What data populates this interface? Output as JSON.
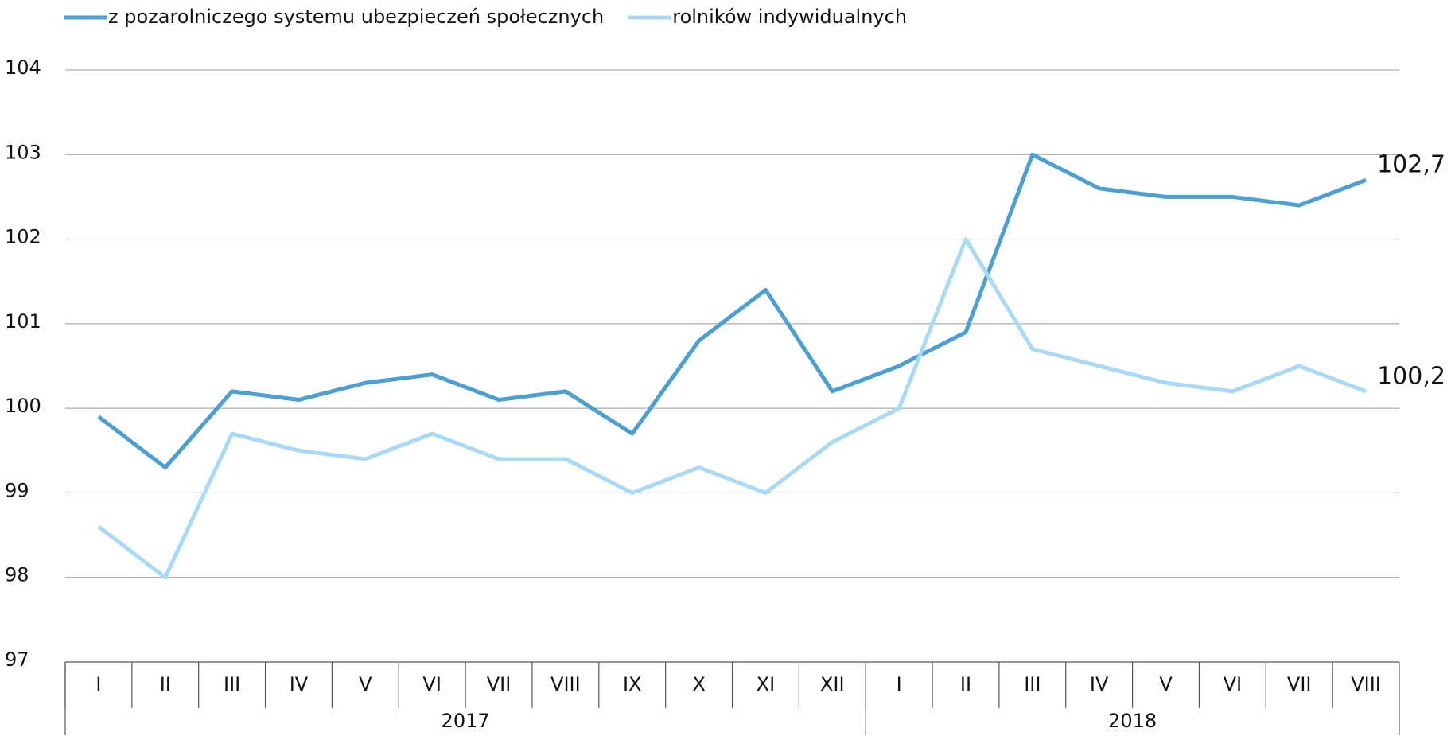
{
  "chart_data": {
    "type": "line",
    "categories": [
      "I",
      "II",
      "III",
      "IV",
      "V",
      "VI",
      "VII",
      "VIII",
      "IX",
      "X",
      "XI",
      "XII",
      "I",
      "II",
      "III",
      "IV",
      "V",
      "VI",
      "VII",
      "VIII"
    ],
    "x_groups": [
      "2017",
      "2018"
    ],
    "series": [
      {
        "name": "z pozarolniczego systemu ubezpieczeń społecznych",
        "color": "#4a9fd5",
        "values": [
          99.9,
          99.3,
          100.2,
          100.1,
          100.3,
          100.4,
          100.1,
          100.2,
          99.7,
          100.8,
          101.4,
          100.2,
          100.5,
          100.9,
          103.0,
          102.6,
          102.5,
          102.5,
          102.4,
          102.7
        ],
        "value_labels": [
          null,
          null,
          null,
          null,
          null,
          null,
          null,
          null,
          null,
          null,
          null,
          null,
          null,
          null,
          null,
          null,
          null,
          null,
          null,
          "102,7"
        ]
      },
      {
        "name": "rolników indywidualnych",
        "color": "#a8d9f7",
        "values": [
          98.6,
          98.0,
          99.7,
          99.5,
          99.4,
          99.7,
          99.4,
          99.4,
          99.0,
          99.3,
          99.0,
          99.6,
          100.0,
          102.0,
          100.7,
          100.5,
          100.3,
          100.2,
          100.5,
          100.2
        ],
        "value_labels": [
          null,
          null,
          null,
          null,
          null,
          null,
          null,
          null,
          null,
          null,
          null,
          null,
          null,
          null,
          null,
          null,
          null,
          null,
          null,
          "100,2"
        ]
      }
    ],
    "ylim": [
      97,
      104
    ],
    "yticks": [
      97,
      98,
      99,
      100,
      101,
      102,
      103,
      104
    ],
    "grid": true,
    "legend": "top"
  }
}
